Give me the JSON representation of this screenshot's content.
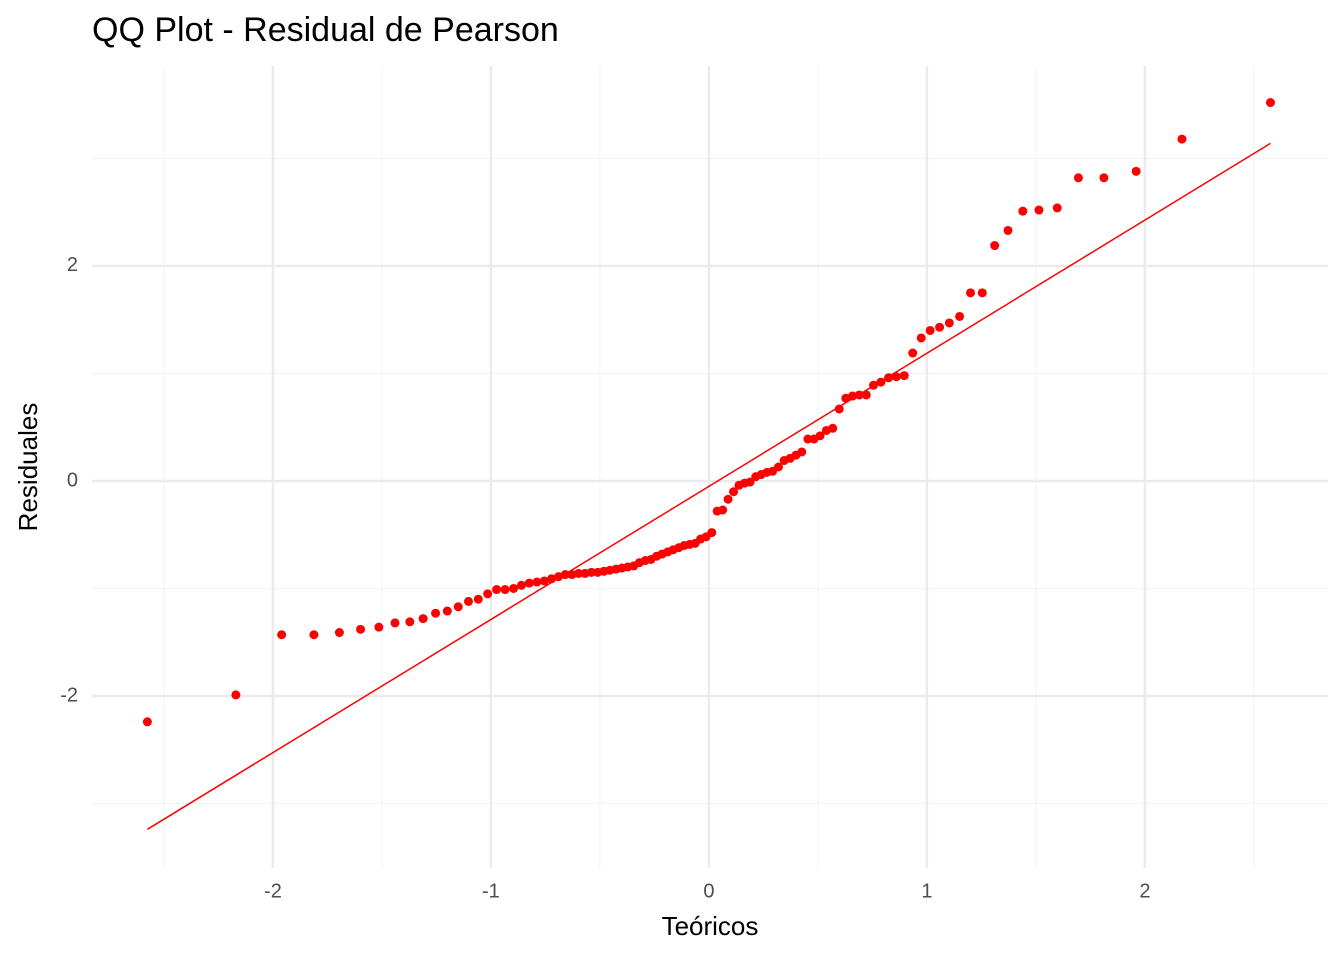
{
  "chart_data": {
    "type": "scatter",
    "title": "QQ Plot - Residual de Pearson",
    "x_label": "Teóricos",
    "y_label": "Residuales",
    "color": "#ff0000",
    "x": [
      -2.576,
      -2.17,
      -1.96,
      -1.812,
      -1.695,
      -1.598,
      -1.514,
      -1.44,
      -1.372,
      -1.311,
      -1.254,
      -1.2,
      -1.15,
      -1.103,
      -1.058,
      -1.015,
      -0.974,
      -0.935,
      -0.896,
      -0.86,
      -0.824,
      -0.789,
      -0.755,
      -0.722,
      -0.69,
      -0.659,
      -0.628,
      -0.598,
      -0.568,
      -0.539,
      -0.51,
      -0.482,
      -0.454,
      -0.426,
      -0.399,
      -0.372,
      -0.345,
      -0.319,
      -0.292,
      -0.266,
      -0.24,
      -0.215,
      -0.189,
      -0.164,
      -0.138,
      -0.113,
      -0.088,
      -0.063,
      -0.038,
      -0.013,
      0.013,
      0.038,
      0.063,
      0.088,
      0.113,
      0.138,
      0.164,
      0.189,
      0.215,
      0.24,
      0.266,
      0.292,
      0.319,
      0.345,
      0.372,
      0.399,
      0.426,
      0.454,
      0.482,
      0.51,
      0.539,
      0.568,
      0.598,
      0.628,
      0.659,
      0.69,
      0.722,
      0.755,
      0.789,
      0.824,
      0.86,
      0.896,
      0.935,
      0.974,
      1.015,
      1.058,
      1.103,
      1.15,
      1.2,
      1.254,
      1.311,
      1.372,
      1.44,
      1.514,
      1.598,
      1.695,
      1.812,
      1.96,
      2.17,
      2.576
    ],
    "values": [
      -2.24,
      -1.99,
      -1.43,
      -1.43,
      -1.41,
      -1.38,
      -1.36,
      -1.32,
      -1.31,
      -1.28,
      -1.23,
      -1.21,
      -1.17,
      -1.12,
      -1.1,
      -1.05,
      -1.01,
      -1.01,
      -1.0,
      -0.97,
      -0.95,
      -0.94,
      -0.93,
      -0.91,
      -0.89,
      -0.87,
      -0.87,
      -0.86,
      -0.86,
      -0.85,
      -0.85,
      -0.84,
      -0.83,
      -0.82,
      -0.81,
      -0.8,
      -0.79,
      -0.76,
      -0.74,
      -0.73,
      -0.7,
      -0.68,
      -0.66,
      -0.64,
      -0.62,
      -0.6,
      -0.59,
      -0.58,
      -0.54,
      -0.52,
      -0.48,
      -0.28,
      -0.27,
      -0.17,
      -0.1,
      -0.04,
      -0.02,
      -0.01,
      0.04,
      0.06,
      0.08,
      0.09,
      0.13,
      0.19,
      0.21,
      0.24,
      0.27,
      0.39,
      0.39,
      0.42,
      0.47,
      0.49,
      0.67,
      0.77,
      0.79,
      0.8,
      0.8,
      0.89,
      0.92,
      0.96,
      0.97,
      0.98,
      1.19,
      1.33,
      1.4,
      1.43,
      1.47,
      1.53,
      1.75,
      1.75,
      2.19,
      2.33,
      2.51,
      2.52,
      2.54,
      2.82,
      2.82,
      2.88,
      3.18,
      3.52
    ],
    "reference_line": {
      "x": [
        -2.576,
        2.576
      ],
      "y": [
        -3.24,
        3.14
      ]
    },
    "xlim": [
      -2.83,
      2.84
    ],
    "ylim": [
      -3.6,
      3.86
    ],
    "xticks": [
      -2,
      -1,
      0,
      1,
      2
    ],
    "yticks": [
      -2,
      0,
      2
    ],
    "xminor": [
      -2.5,
      -1.5,
      -0.5,
      0.5,
      1.5,
      2.5
    ],
    "yminor": [
      -3,
      -1,
      1,
      3
    ],
    "grid": true
  }
}
